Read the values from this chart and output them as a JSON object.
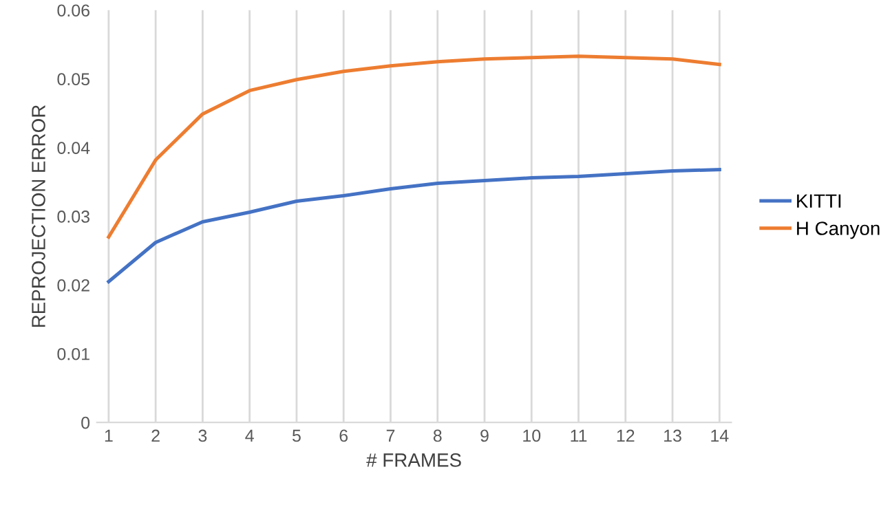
{
  "chart_data": {
    "type": "line",
    "xlabel": "# FRAMES",
    "ylabel": "REPROJECTION ERROR",
    "categories": [
      "1",
      "2",
      "3",
      "4",
      "5",
      "6",
      "7",
      "8",
      "9",
      "10",
      "11",
      "12",
      "13",
      "14"
    ],
    "series": [
      {
        "name": "KITTI",
        "color": "#4472c4",
        "values": [
          0.0205,
          0.0262,
          0.0292,
          0.0306,
          0.0322,
          0.033,
          0.034,
          0.0348,
          0.0352,
          0.0356,
          0.0358,
          0.0362,
          0.0366,
          0.0368
        ]
      },
      {
        "name": "H Canyon",
        "color": "#ed7d31",
        "values": [
          0.027,
          0.0382,
          0.0449,
          0.0483,
          0.0499,
          0.0511,
          0.0519,
          0.0525,
          0.0529,
          0.0531,
          0.0533,
          0.0531,
          0.0529,
          0.0521
        ]
      }
    ],
    "ylim": [
      0,
      0.06
    ],
    "yticks": [
      {
        "value": 0,
        "label": "0"
      },
      0.01,
      0.02,
      0.03,
      0.04,
      0.05,
      0.06
    ],
    "grid": "x",
    "legend": "right",
    "marker": "none",
    "line_style": "solid"
  }
}
